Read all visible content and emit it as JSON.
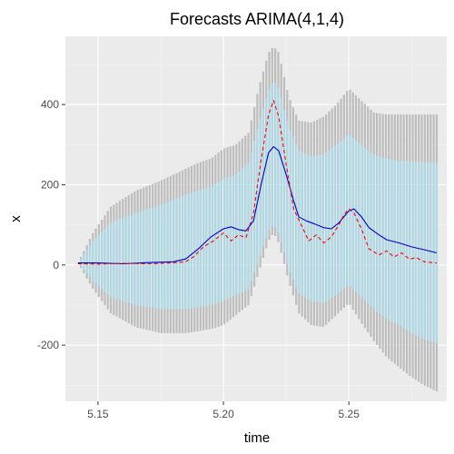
{
  "chart_data": {
    "type": "line",
    "title": "Forecasts ARIMA(4,1,4)",
    "xlabel": "time",
    "ylabel": "x",
    "xlim": [
      5.137,
      5.289
    ],
    "ylim": [
      -340,
      570
    ],
    "x_ticks": [
      {
        "value": 5.15,
        "label": "5.15"
      },
      {
        "value": 5.2,
        "label": "5.20"
      },
      {
        "value": 5.25,
        "label": "5.25"
      }
    ],
    "y_ticks": [
      {
        "value": -200,
        "label": "-200"
      },
      {
        "value": 0,
        "label": "0"
      },
      {
        "value": 200,
        "label": "200"
      },
      {
        "value": 400,
        "label": "400"
      }
    ],
    "grid": true,
    "legend": "none",
    "colors": {
      "panel_bg": "#ebebeb",
      "grid_major": "#ffffff",
      "grid_minor": "#f4f4f4",
      "band_outer": "#bdbdbd",
      "band_inner": "#add8e6",
      "forecast_line": "#0000cd",
      "actual_line": "#ff0000",
      "tick_mark": "#333333"
    },
    "bands": {
      "x": [
        5.142,
        5.148,
        5.155,
        5.165,
        5.175,
        5.185,
        5.19,
        5.195,
        5.2,
        5.205,
        5.21,
        5.214,
        5.218,
        5.22,
        5.222,
        5.226,
        5.23,
        5.235,
        5.24,
        5.245,
        5.25,
        5.255,
        5.26,
        5.265,
        5.27,
        5.275,
        5.28,
        5.285
      ],
      "outer_upper": [
        5,
        80,
        145,
        185,
        210,
        240,
        255,
        265,
        290,
        300,
        330,
        440,
        530,
        545,
        530,
        420,
        360,
        355,
        370,
        400,
        440,
        410,
        380,
        375,
        375,
        375,
        375,
        375
      ],
      "inner_upper": [
        5,
        60,
        105,
        130,
        150,
        175,
        185,
        195,
        215,
        225,
        255,
        350,
        435,
        460,
        440,
        345,
        285,
        270,
        275,
        300,
        325,
        300,
        275,
        265,
        260,
        258,
        256,
        255
      ],
      "inner_lower": [
        5,
        -40,
        -80,
        -100,
        -110,
        -110,
        -105,
        -100,
        -90,
        -75,
        -60,
        10,
        85,
        100,
        80,
        -10,
        -70,
        -90,
        -95,
        -75,
        -50,
        -80,
        -110,
        -135,
        -150,
        -170,
        -185,
        -195
      ],
      "outer_lower": [
        5,
        -60,
        -120,
        -155,
        -170,
        -170,
        -165,
        -160,
        -150,
        -125,
        -100,
        -20,
        60,
        80,
        55,
        -40,
        -120,
        -150,
        -155,
        -125,
        -95,
        -145,
        -190,
        -230,
        -255,
        -280,
        -300,
        -315
      ]
    },
    "series": [
      {
        "role": "forecast",
        "x": [
          5.142,
          5.15,
          5.16,
          5.17,
          5.18,
          5.185,
          5.19,
          5.195,
          5.2,
          5.203,
          5.206,
          5.209,
          5.212,
          5.215,
          5.218,
          5.22,
          5.222,
          5.225,
          5.228,
          5.23,
          5.233,
          5.236,
          5.24,
          5.243,
          5.246,
          5.248,
          5.25,
          5.252,
          5.255,
          5.258,
          5.262,
          5.265,
          5.27,
          5.275,
          5.28,
          5.285
        ],
        "y": [
          5,
          5,
          3,
          6,
          8,
          15,
          40,
          70,
          90,
          95,
          88,
          85,
          110,
          200,
          280,
          295,
          285,
          225,
          160,
          120,
          110,
          103,
          93,
          90,
          105,
          120,
          135,
          140,
          120,
          93,
          75,
          63,
          55,
          45,
          38,
          30
        ]
      },
      {
        "role": "actual",
        "x": [
          5.142,
          5.15,
          5.16,
          5.17,
          5.18,
          5.185,
          5.188,
          5.192,
          5.196,
          5.2,
          5.203,
          5.206,
          5.209,
          5.212,
          5.215,
          5.218,
          5.22,
          5.222,
          5.225,
          5.228,
          5.231,
          5.234,
          5.237,
          5.24,
          5.243,
          5.246,
          5.248,
          5.25,
          5.252,
          5.255,
          5.258,
          5.262,
          5.265,
          5.268,
          5.271,
          5.274,
          5.277,
          5.28,
          5.285
        ],
        "y": [
          3,
          2,
          4,
          3,
          5,
          8,
          20,
          45,
          60,
          80,
          60,
          75,
          68,
          130,
          260,
          375,
          410,
          370,
          250,
          140,
          100,
          60,
          75,
          55,
          70,
          100,
          125,
          140,
          130,
          90,
          40,
          25,
          35,
          20,
          30,
          15,
          18,
          8,
          5
        ]
      }
    ]
  }
}
